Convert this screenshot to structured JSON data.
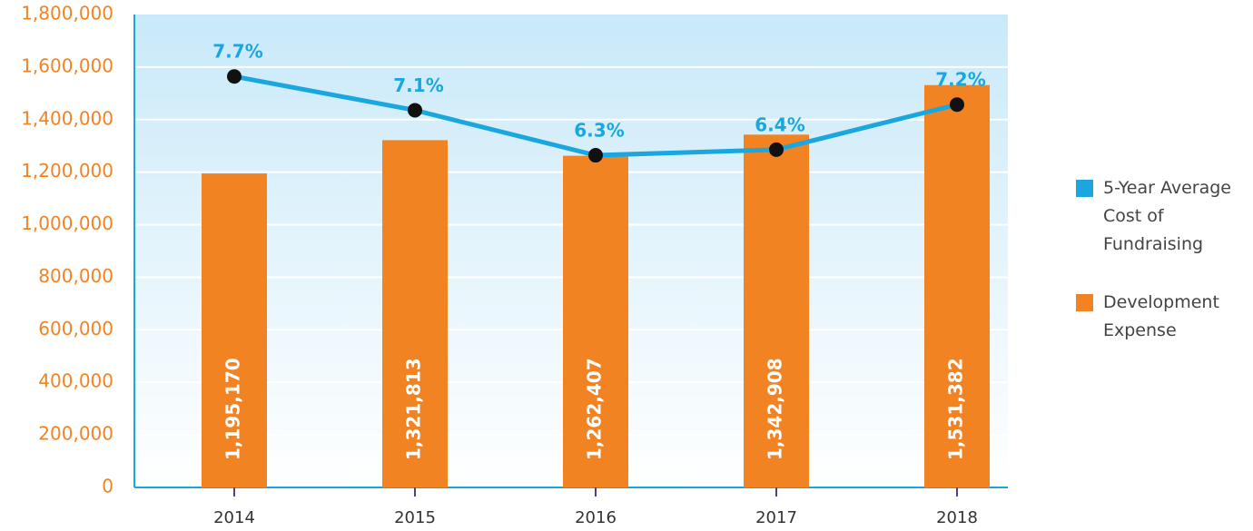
{
  "chart_data": {
    "type": "bar",
    "categories": [
      "2014",
      "2015",
      "2016",
      "2017",
      "2018"
    ],
    "series": [
      {
        "name": "5-Year Average Cost of Fundraising",
        "type": "line",
        "axis": "y2",
        "color": "#1aa7e0",
        "values": [
          7.7,
          7.1,
          6.3,
          6.4,
          7.2
        ],
        "value_labels": [
          "7.7%",
          "7.1%",
          "6.3%",
          "6.4%",
          "7.2%"
        ]
      },
      {
        "name": "Development Expense",
        "type": "bar",
        "color": "#f28322",
        "values": [
          1195170,
          1321813,
          1262407,
          1342908,
          1531382
        ],
        "value_labels": [
          "1,195,170",
          "1,321,813",
          "1,262,407",
          "1,342,908",
          "1,531,382"
        ]
      }
    ],
    "ylim": [
      0,
      1800000
    ],
    "yticks": [
      0,
      {
        "value": 200000,
        "label": "200,000"
      },
      {
        "value": 400000,
        "label": "400,000"
      },
      {
        "value": 600000,
        "label": "600,000"
      },
      {
        "value": 800000,
        "label": "800,000"
      },
      {
        "value": 1000000,
        "label": "1,000,000"
      },
      {
        "value": 1200000,
        "label": "1,200,000"
      },
      {
        "value": 1400000,
        "label": "1,400,000"
      },
      {
        "value": 1600000,
        "label": "1,600,000"
      },
      {
        "value": 1800000,
        "label": "1,800,000"
      }
    ],
    "y2lim": [
      0.4,
      8.8
    ],
    "grid": true
  }
}
